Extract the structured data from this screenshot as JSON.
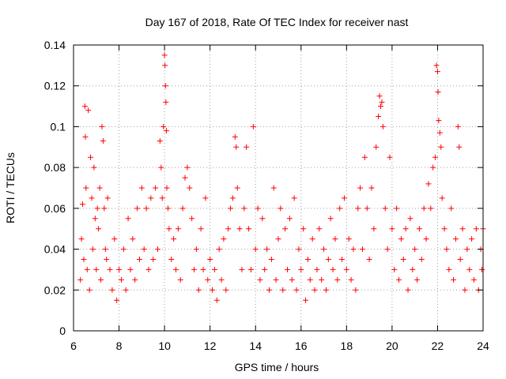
{
  "chart_data": {
    "type": "scatter",
    "title": "Day 167 of 2018, Rate Of TEC Index for receiver nast",
    "xlabel": "GPS time / hours",
    "ylabel": "ROTI / TECUs",
    "xlim": [
      6,
      24
    ],
    "ylim": [
      0,
      0.14
    ],
    "x_ticks": [
      6,
      8,
      10,
      12,
      14,
      16,
      18,
      20,
      22,
      24
    ],
    "y_ticks": [
      0,
      0.02,
      0.04,
      0.06,
      0.08,
      0.1,
      0.12,
      0.14
    ],
    "x_tick_labels": [
      "6",
      "8",
      "10",
      "12",
      "14",
      "16",
      "18",
      "20",
      "22",
      "24"
    ],
    "y_tick_labels": [
      "0",
      "0.02",
      "0.04",
      "0.06",
      "0.08",
      "0.1",
      "0.12",
      "0.14"
    ],
    "grid": true,
    "marker": "+",
    "color": "#ff0000",
    "series": [
      {
        "name": "ROTI",
        "points": [
          [
            6.3,
            0.025
          ],
          [
            6.35,
            0.045
          ],
          [
            6.4,
            0.062
          ],
          [
            6.45,
            0.035
          ],
          [
            6.5,
            0.11
          ],
          [
            6.52,
            0.095
          ],
          [
            6.55,
            0.07
          ],
          [
            6.6,
            0.03
          ],
          [
            6.65,
            0.108
          ],
          [
            6.7,
            0.02
          ],
          [
            6.75,
            0.085
          ],
          [
            6.8,
            0.065
          ],
          [
            6.85,
            0.04
          ],
          [
            6.9,
            0.08
          ],
          [
            6.95,
            0.055
          ],
          [
            7.0,
            0.03
          ],
          [
            7.05,
            0.06
          ],
          [
            7.1,
            0.05
          ],
          [
            7.15,
            0.07
          ],
          [
            7.2,
            0.025
          ],
          [
            7.25,
            0.1
          ],
          [
            7.3,
            0.093
          ],
          [
            7.35,
            0.06
          ],
          [
            7.4,
            0.04
          ],
          [
            7.45,
            0.035
          ],
          [
            7.5,
            0.065
          ],
          [
            7.6,
            0.03
          ],
          [
            7.7,
            0.02
          ],
          [
            7.8,
            0.045
          ],
          [
            7.9,
            0.015
          ],
          [
            8.0,
            0.03
          ],
          [
            8.1,
            0.025
          ],
          [
            8.2,
            0.04
          ],
          [
            8.3,
            0.02
          ],
          [
            8.4,
            0.055
          ],
          [
            8.5,
            0.03
          ],
          [
            8.6,
            0.045
          ],
          [
            8.7,
            0.025
          ],
          [
            8.8,
            0.06
          ],
          [
            8.9,
            0.035
          ],
          [
            9.0,
            0.07
          ],
          [
            9.1,
            0.04
          ],
          [
            9.2,
            0.06
          ],
          [
            9.3,
            0.03
          ],
          [
            9.4,
            0.065
          ],
          [
            9.5,
            0.035
          ],
          [
            9.6,
            0.07
          ],
          [
            9.7,
            0.04
          ],
          [
            9.8,
            0.093
          ],
          [
            9.85,
            0.08
          ],
          [
            9.9,
            0.065
          ],
          [
            9.95,
            0.1
          ],
          [
            10.0,
            0.135
          ],
          [
            10.02,
            0.13
          ],
          [
            10.04,
            0.12
          ],
          [
            10.06,
            0.112
          ],
          [
            10.08,
            0.098
          ],
          [
            10.1,
            0.07
          ],
          [
            10.15,
            0.06
          ],
          [
            10.2,
            0.05
          ],
          [
            10.3,
            0.035
          ],
          [
            10.4,
            0.045
          ],
          [
            10.5,
            0.03
          ],
          [
            10.6,
            0.05
          ],
          [
            10.7,
            0.025
          ],
          [
            10.8,
            0.06
          ],
          [
            10.9,
            0.075
          ],
          [
            11.0,
            0.08
          ],
          [
            11.1,
            0.07
          ],
          [
            11.2,
            0.055
          ],
          [
            11.3,
            0.03
          ],
          [
            11.4,
            0.04
          ],
          [
            11.5,
            0.02
          ],
          [
            11.6,
            0.05
          ],
          [
            11.7,
            0.03
          ],
          [
            11.8,
            0.065
          ],
          [
            11.9,
            0.025
          ],
          [
            12.0,
            0.035
          ],
          [
            12.1,
            0.02
          ],
          [
            12.2,
            0.03
          ],
          [
            12.3,
            0.015
          ],
          [
            12.4,
            0.04
          ],
          [
            12.5,
            0.025
          ],
          [
            12.6,
            0.045
          ],
          [
            12.7,
            0.02
          ],
          [
            12.8,
            0.05
          ],
          [
            12.9,
            0.06
          ],
          [
            13.0,
            0.065
          ],
          [
            13.1,
            0.095
          ],
          [
            13.15,
            0.09
          ],
          [
            13.2,
            0.07
          ],
          [
            13.3,
            0.05
          ],
          [
            13.4,
            0.03
          ],
          [
            13.5,
            0.06
          ],
          [
            13.6,
            0.09
          ],
          [
            13.7,
            0.05
          ],
          [
            13.8,
            0.03
          ],
          [
            13.9,
            0.1
          ],
          [
            14.0,
            0.04
          ],
          [
            14.1,
            0.06
          ],
          [
            14.2,
            0.025
          ],
          [
            14.3,
            0.055
          ],
          [
            14.4,
            0.03
          ],
          [
            14.5,
            0.04
          ],
          [
            14.6,
            0.02
          ],
          [
            14.7,
            0.035
          ],
          [
            14.8,
            0.07
          ],
          [
            14.9,
            0.025
          ],
          [
            15.0,
            0.045
          ],
          [
            15.1,
            0.06
          ],
          [
            15.2,
            0.02
          ],
          [
            15.3,
            0.05
          ],
          [
            15.4,
            0.03
          ],
          [
            15.5,
            0.055
          ],
          [
            15.6,
            0.025
          ],
          [
            15.7,
            0.065
          ],
          [
            15.8,
            0.02
          ],
          [
            15.9,
            0.04
          ],
          [
            16.0,
            0.03
          ],
          [
            16.1,
            0.05
          ],
          [
            16.2,
            0.015
          ],
          [
            16.3,
            0.035
          ],
          [
            16.4,
            0.025
          ],
          [
            16.5,
            0.045
          ],
          [
            16.6,
            0.02
          ],
          [
            16.7,
            0.03
          ],
          [
            16.8,
            0.05
          ],
          [
            16.9,
            0.025
          ],
          [
            17.0,
            0.04
          ],
          [
            17.1,
            0.02
          ],
          [
            17.2,
            0.035
          ],
          [
            17.3,
            0.055
          ],
          [
            17.4,
            0.03
          ],
          [
            17.5,
            0.045
          ],
          [
            17.6,
            0.025
          ],
          [
            17.7,
            0.06
          ],
          [
            17.8,
            0.035
          ],
          [
            17.9,
            0.065
          ],
          [
            18.0,
            0.03
          ],
          [
            18.1,
            0.045
          ],
          [
            18.2,
            0.025
          ],
          [
            18.3,
            0.04
          ],
          [
            18.4,
            0.02
          ],
          [
            18.5,
            0.06
          ],
          [
            18.6,
            0.07
          ],
          [
            18.7,
            0.04
          ],
          [
            18.8,
            0.085
          ],
          [
            18.9,
            0.06
          ],
          [
            19.0,
            0.035
          ],
          [
            19.1,
            0.07
          ],
          [
            19.2,
            0.05
          ],
          [
            19.3,
            0.09
          ],
          [
            19.4,
            0.105
          ],
          [
            19.45,
            0.115
          ],
          [
            19.5,
            0.11
          ],
          [
            19.55,
            0.112
          ],
          [
            19.6,
            0.1
          ],
          [
            19.7,
            0.06
          ],
          [
            19.8,
            0.04
          ],
          [
            19.9,
            0.085
          ],
          [
            20.0,
            0.05
          ],
          [
            20.1,
            0.03
          ],
          [
            20.2,
            0.06
          ],
          [
            20.3,
            0.025
          ],
          [
            20.4,
            0.045
          ],
          [
            20.5,
            0.035
          ],
          [
            20.6,
            0.05
          ],
          [
            20.7,
            0.02
          ],
          [
            20.8,
            0.055
          ],
          [
            20.9,
            0.03
          ],
          [
            21.0,
            0.04
          ],
          [
            21.1,
            0.025
          ],
          [
            21.2,
            0.05
          ],
          [
            21.3,
            0.035
          ],
          [
            21.4,
            0.06
          ],
          [
            21.5,
            0.045
          ],
          [
            21.6,
            0.072
          ],
          [
            21.7,
            0.06
          ],
          [
            21.8,
            0.08
          ],
          [
            21.9,
            0.085
          ],
          [
            21.95,
            0.13
          ],
          [
            22.0,
            0.127
          ],
          [
            22.02,
            0.117
          ],
          [
            22.05,
            0.103
          ],
          [
            22.1,
            0.097
          ],
          [
            22.15,
            0.09
          ],
          [
            22.2,
            0.065
          ],
          [
            22.3,
            0.05
          ],
          [
            22.4,
            0.04
          ],
          [
            22.5,
            0.03
          ],
          [
            22.6,
            0.06
          ],
          [
            22.7,
            0.025
          ],
          [
            22.8,
            0.045
          ],
          [
            22.9,
            0.1
          ],
          [
            22.95,
            0.09
          ],
          [
            23.0,
            0.035
          ],
          [
            23.1,
            0.05
          ],
          [
            23.2,
            0.02
          ],
          [
            23.3,
            0.04
          ],
          [
            23.4,
            0.03
          ],
          [
            23.5,
            0.045
          ],
          [
            23.6,
            0.025
          ],
          [
            23.7,
            0.05
          ],
          [
            23.8,
            0.02
          ],
          [
            23.9,
            0.04
          ],
          [
            23.95,
            0.03
          ],
          [
            24.0,
            0.05
          ]
        ]
      }
    ]
  }
}
